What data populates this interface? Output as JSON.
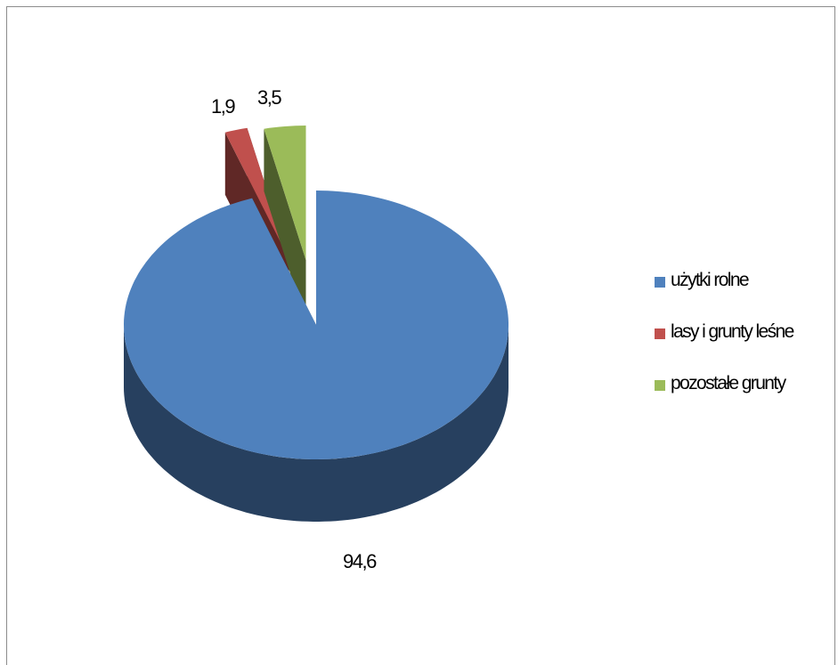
{
  "chart_data": {
    "type": "pie",
    "title": "",
    "exploded": true,
    "three_d": true,
    "legend_position": "right",
    "series": [
      {
        "name": "użytki rolne",
        "label": "94,6",
        "value": 94.6,
        "color": "#4f81bd",
        "side_color": "#27405f"
      },
      {
        "name": "lasy i grunty leśne",
        "label": "1,9",
        "value": 1.9,
        "color": "#c0504d",
        "side_color": "#602826"
      },
      {
        "name": "pozostałe grunty",
        "label": "3,5",
        "value": 3.5,
        "color": "#9bbb59",
        "side_color": "#4d5e2c"
      }
    ]
  }
}
